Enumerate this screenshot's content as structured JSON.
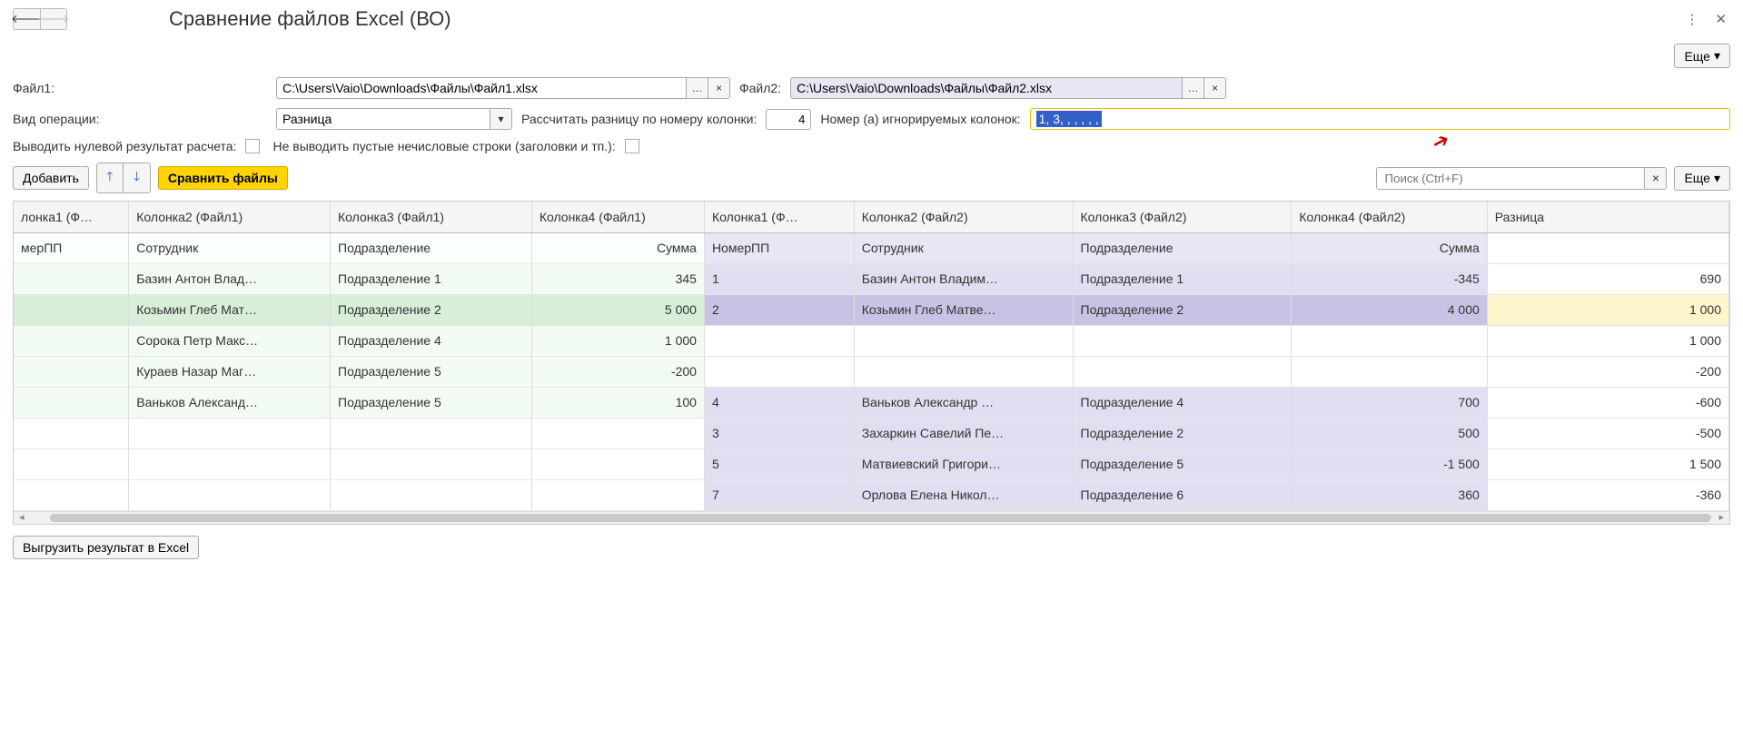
{
  "title": "Сравнение файлов Excel (ВО)",
  "more_btn": "Еще",
  "labels": {
    "file1": "Файл1:",
    "file2": "Файл2:",
    "operation": "Вид операции:",
    "calc_col": "Рассчитать разницу по номеру колонки:",
    "ignore_cols": "Номер (а) игнорируемых колонок:",
    "zero_result": "Выводить нулевой результат расчета:",
    "skip_empty": "Не выводить пустые нечисловые строки (заголовки и тп.):"
  },
  "values": {
    "file1": "C:\\Users\\Vaio\\Downloads\\Файлы\\Файл1.xlsx",
    "file2": "C:\\Users\\Vaio\\Downloads\\Файлы\\Файл2.xlsx",
    "operation": "Разница",
    "calc_col": "4",
    "ignore_cols": "1, 3, , , , , ,"
  },
  "buttons": {
    "add": "Добавить",
    "compare": "Сравнить файлы",
    "export": "Выгрузить результат в Excel"
  },
  "search_placeholder": "Поиск (Ctrl+F)",
  "table": {
    "columns": [
      "лонка1 (Ф…",
      "Колонка2 (Файл1)",
      "Колонка3 (Файл1)",
      "Колонка4 (Файл1)",
      "Колонка1 (Ф…",
      "Колонка2 (Файл2)",
      "Колонка3 (Файл2)",
      "Колонка4 (Файл2)",
      "Разница"
    ],
    "header_row": [
      "мерПП",
      "Сотрудник",
      "Подразделение",
      "Сумма",
      "НомерПП",
      "Сотрудник",
      "Подразделение",
      "Сумма",
      ""
    ],
    "rows": [
      {
        "f1": [
          "",
          "Базин Антон Влад…",
          "Подразделение 1",
          "345"
        ],
        "f2": [
          "1",
          "Базин Антон Владим…",
          "Подразделение 1",
          "-345"
        ],
        "diff": "690",
        "sel": false
      },
      {
        "f1": [
          "",
          "Козьмин Глеб Мат…",
          "Подразделение 2",
          "5 000"
        ],
        "f2": [
          "2",
          "Козьмин Глеб Матве…",
          "Подразделение 2",
          "4 000"
        ],
        "diff": "1 000",
        "sel": true
      },
      {
        "f1": [
          "",
          "Сорока Петр Макс…",
          "Подразделение 4",
          "1 000"
        ],
        "f2": [
          "",
          "",
          "",
          ""
        ],
        "diff": "1 000",
        "sel": false,
        "f2empty": true
      },
      {
        "f1": [
          "",
          "Кураев Назар Маг…",
          "Подразделение 5",
          "-200"
        ],
        "f2": [
          "",
          "",
          "",
          ""
        ],
        "diff": "-200",
        "sel": false,
        "f2empty": true
      },
      {
        "f1": [
          "",
          "Ваньков Александ…",
          "Подразделение 5",
          "100"
        ],
        "f2": [
          "4",
          "Ваньков Александр …",
          "Подразделение 4",
          "700"
        ],
        "diff": "-600",
        "sel": false
      },
      {
        "f1": [
          "",
          "",
          "",
          ""
        ],
        "f2": [
          "3",
          "Захаркин Савелий Пе…",
          "Подразделение 2",
          "500"
        ],
        "diff": "-500",
        "sel": false,
        "f1empty": true
      },
      {
        "f1": [
          "",
          "",
          "",
          ""
        ],
        "f2": [
          "5",
          "Матвиевский Григори…",
          "Подразделение 5",
          "-1 500"
        ],
        "diff": "1 500",
        "sel": false,
        "f1empty": true
      },
      {
        "f1": [
          "",
          "",
          "",
          ""
        ],
        "f2": [
          "7",
          "Орлова Елена Никол…",
          "Подразделение 6",
          "360"
        ],
        "diff": "-360",
        "sel": false,
        "f1empty": true
      }
    ]
  },
  "colors": {
    "f1_bg": "#f2fcf2",
    "f2_bg": "#e2def2",
    "sel_f1": "#d8eed8",
    "sel_f2": "#c8c3e5",
    "diff_sel": "#fff5cc",
    "highlight_border": "#e0c000",
    "selection_bg": "#3060c8"
  }
}
